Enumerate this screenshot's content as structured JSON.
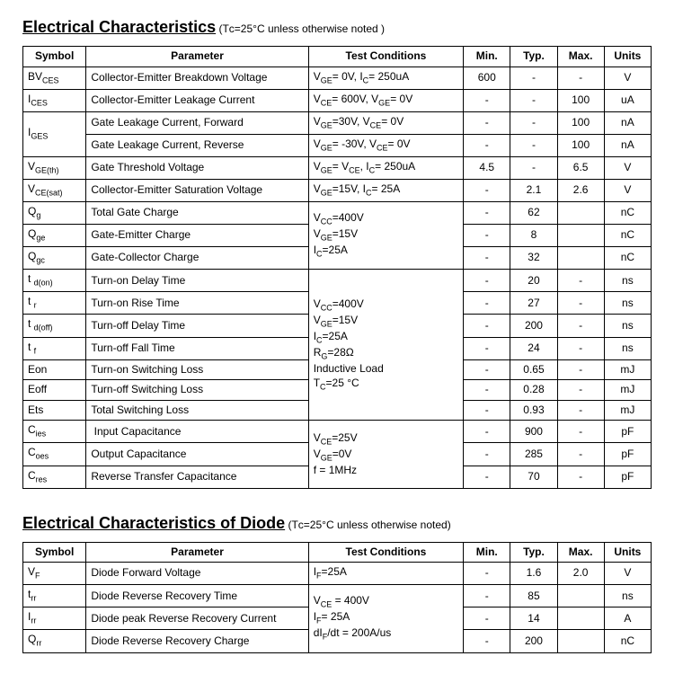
{
  "section1": {
    "title": "Electrical Characteristics",
    "note": "(Tᴄ=25°C unless otherwise noted )",
    "headers": [
      "Symbol",
      "Parameter",
      "Test Conditions",
      "Min.",
      "Typ.",
      "Max.",
      "Units"
    ],
    "rows": [
      {
        "sym": "BV<sub>CES</sub>",
        "param": "Collector-Emitter Breakdown Voltage",
        "cond": "V<sub>GE</sub>= 0V, I<sub>C</sub>= 250uA",
        "min": "600",
        "typ": "-",
        "max": "-",
        "units": "V"
      },
      {
        "sym": "I<sub>CES</sub>",
        "param": "Collector-Emitter Leakage Current",
        "cond": "V<sub>CE</sub>= 600V, V<sub>GE</sub>= 0V",
        "min": "-",
        "typ": "-",
        "max": "100",
        "units": "uA"
      },
      {
        "sym": "",
        "param": "Gate Leakage Current, Forward",
        "cond": "V<sub>GE</sub>=30V, V<sub>CE</sub>= 0V",
        "min": "-",
        "typ": "-",
        "max": "100",
        "units": "nA",
        "symspan": 2,
        "symlabel": "I<sub>GES</sub>"
      },
      {
        "sym": "",
        "param": "Gate Leakage Current, Reverse",
        "cond": "V<sub>GE</sub>= -30V, V<sub>CE</sub>= 0V",
        "min": "-",
        "typ": "-",
        "max": "100",
        "units": "nA",
        "skip_sym": true
      },
      {
        "sym": "V<sub>GE(th)</sub>",
        "param": "Gate Threshold Voltage",
        "cond": "V<sub>GE</sub>= V<sub>CE</sub>, I<sub>C</sub>= 250uA",
        "min": "4.5",
        "typ": "-",
        "max": "6.5",
        "units": "V"
      },
      {
        "sym": "V<sub>CE(sat)</sub>",
        "param": "Collector-Emitter Saturation Voltage",
        "cond": "V<sub>GE</sub>=15V, I<sub>C</sub>= 25A",
        "min": "-",
        "typ": "2.1",
        "max": "2.6",
        "units": "V"
      },
      {
        "sym": "Q<sub>g</sub>",
        "param": "Total Gate Charge",
        "condspan": 3,
        "cond": "V<sub>CC</sub>=400V<br>V<sub>GE</sub>=15V<br>I<sub>C</sub>=25A",
        "min": "-",
        "typ": "62",
        "max": "",
        "units": "nC"
      },
      {
        "sym": "Q<sub>ge</sub>",
        "param": "Gate-Emitter Charge",
        "skip_cond": true,
        "min": "-",
        "typ": "8",
        "max": "",
        "units": "nC"
      },
      {
        "sym": "Q<sub>gc</sub>",
        "param": "Gate-Collector Charge",
        "skip_cond": true,
        "min": "-",
        "typ": "32",
        "max": "",
        "units": "nC"
      },
      {
        "sym": "t <sub>d(on)</sub>",
        "param": "Turn-on Delay Time",
        "condspan": 7,
        "cond": "V<sub>CC</sub>=400V<br>V<sub>GE</sub>=15V<br>I<sub>C</sub>=25A<br>R<sub>G</sub>=28Ω<br>Inductive Load<br>T<sub>C</sub>=25 °C",
        "min": "-",
        "typ": "20",
        "max": "-",
        "units": "ns"
      },
      {
        "sym": "t <sub>r</sub>",
        "param": "Turn-on Rise Time",
        "skip_cond": true,
        "min": "-",
        "typ": "27",
        "max": "-",
        "units": "ns"
      },
      {
        "sym": "t <sub>d(off)</sub>",
        "param": "Turn-off Delay Time",
        "skip_cond": true,
        "min": "-",
        "typ": "200",
        "max": "-",
        "units": "ns"
      },
      {
        "sym": "t <sub>f</sub>",
        "param": "Turn-off Fall Time",
        "skip_cond": true,
        "min": "-",
        "typ": "24",
        "max": "-",
        "units": "ns"
      },
      {
        "sym": "Eon",
        "param": "Turn-on Switching Loss",
        "skip_cond": true,
        "min": "-",
        "typ": "0.65",
        "max": "-",
        "units": "mJ"
      },
      {
        "sym": "Eoff",
        "param": "Turn-off Switching Loss",
        "skip_cond": true,
        "min": "-",
        "typ": "0.28",
        "max": "-",
        "units": "mJ"
      },
      {
        "sym": "Ets",
        "param": "Total Switching Loss",
        "skip_cond": true,
        "min": "-",
        "typ": "0.93",
        "max": "-",
        "units": "mJ"
      },
      {
        "sym": "C<sub>ies</sub>",
        "param": "&nbsp;Input Capacitance",
        "condspan": 3,
        "cond": "V<sub>CE</sub>=25V<br>V<sub>GE</sub>=0V<br>f = 1MHz",
        "min": "-",
        "typ": "900",
        "max": "-",
        "units": "pF"
      },
      {
        "sym": "C<sub>oes</sub>",
        "param": "Output Capacitance",
        "skip_cond": true,
        "min": "-",
        "typ": "285",
        "max": "-",
        "units": "pF"
      },
      {
        "sym": "C<sub>res</sub>",
        "param": "Reverse Transfer Capacitance",
        "skip_cond": true,
        "min": "-",
        "typ": "70",
        "max": "-",
        "units": "pF"
      }
    ]
  },
  "section2": {
    "title": "Electrical Characteristics of Diode",
    "note": "(Tᴄ=25°C unless otherwise noted)",
    "headers": [
      "Symbol",
      "Parameter",
      "Test Conditions",
      "Min.",
      "Typ.",
      "Max.",
      "Units"
    ],
    "rows": [
      {
        "sym": "V<sub>F</sub>",
        "param": "Diode Forward Voltage",
        "cond": "I<sub>F</sub>=25A",
        "min": "-",
        "typ": "1.6",
        "max": "2.0",
        "units": "V"
      },
      {
        "sym": "t<sub>rr</sub>",
        "param": "Diode Reverse Recovery Time",
        "condspan": 3,
        "cond": "V<sub>CE</sub> = 400V<br>I<sub>F</sub>= 25A<br>dI<sub>F</sub>/dt = 200A/us",
        "min": "-",
        "typ": "85",
        "max": "",
        "units": "ns"
      },
      {
        "sym": "I<sub>rr</sub>",
        "param": "Diode peak Reverse Recovery Current",
        "skip_cond": true,
        "min": "-",
        "typ": "14",
        "max": "",
        "units": "A"
      },
      {
        "sym": "Q<sub>rr</sub>",
        "param": "Diode Reverse Recovery Charge",
        "skip_cond": true,
        "min": "-",
        "typ": "200",
        "max": "",
        "units": "nC"
      }
    ]
  },
  "style": {
    "font_family": "Arial",
    "heading_fontsize_pt": 14,
    "body_fontsize_pt": 9,
    "border_color": "#000000",
    "background_color": "#ffffff",
    "text_color": "#000000"
  }
}
